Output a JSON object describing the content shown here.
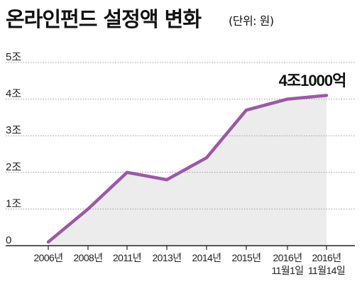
{
  "title": "온라인펀드 설정액 변화",
  "subtitle": "(단위: 원)",
  "colors": {
    "line": "#9b59a6",
    "area": "#ececec",
    "grid": "#9a9a9a",
    "axis": "#222222"
  },
  "chart_data": {
    "type": "area",
    "title": "온라인펀드 설정액 변화",
    "unit": "(단위: 원)",
    "categories": [
      [
        "2006년"
      ],
      [
        "2008년"
      ],
      [
        "2011년"
      ],
      [
        "2013년"
      ],
      [
        "2014년"
      ],
      [
        "2015년"
      ],
      [
        "2016년",
        "11월1일"
      ],
      [
        "2016년",
        "11월14일"
      ]
    ],
    "values": [
      0.1,
      1.0,
      2.0,
      1.8,
      2.4,
      3.7,
      4.0,
      4.1
    ],
    "y_ticks": [
      {
        "value": 0,
        "label": "0"
      },
      {
        "value": 1,
        "label": "1조"
      },
      {
        "value": 2,
        "label": "2조"
      },
      {
        "value": 3,
        "label": "3조"
      },
      {
        "value": 4,
        "label": "4조"
      },
      {
        "value": 5,
        "label": "5조"
      }
    ],
    "ylim": [
      0,
      5
    ],
    "grid": true,
    "annotations": [
      {
        "point_index": 7,
        "text": "4조1000억"
      }
    ]
  }
}
